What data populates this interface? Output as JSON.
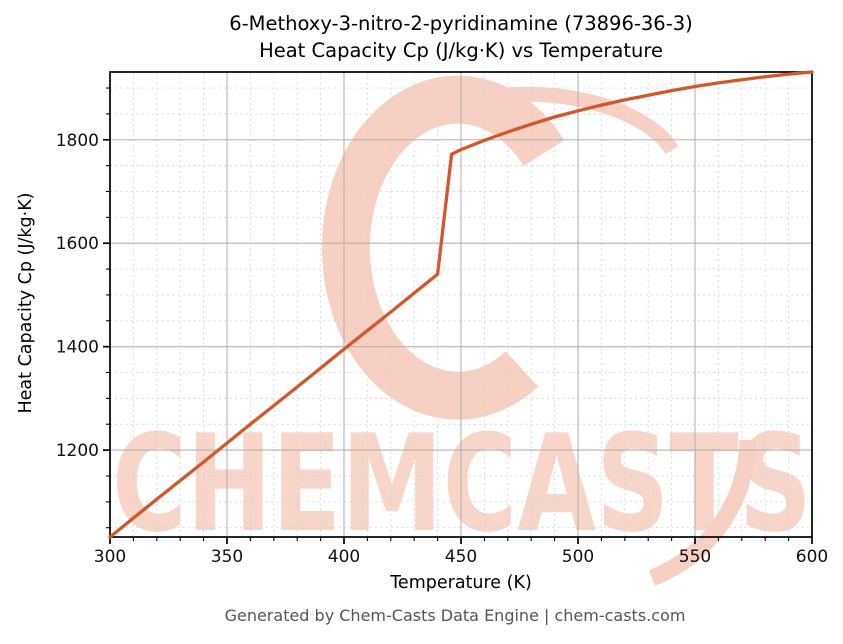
{
  "page": {
    "title_line1": "6-Methoxy-3-nitro-2-pyridinamine (73896-36-3)",
    "title_line2": "Heat Capacity Cp (J/kg·K) vs Temperature",
    "footer": "Generated by Chem-Casts Data Engine | chem-casts.com",
    "watermark_text": "CHEMCASTS"
  },
  "colors": {
    "line": "#d4572b",
    "watermark": "#f8d5c9",
    "watermark_logo": "#f7d0c3",
    "grid_major": "#b3b3b3",
    "grid_minor": "#d4d4d4",
    "frame": "#000000",
    "tick_label": "#111111",
    "footer_text": "#545454"
  },
  "chart_data": {
    "type": "line",
    "title": "6-Methoxy-3-nitro-2-pyridinamine (73896-36-3)\nHeat Capacity Cp (J/kg·K) vs Temperature",
    "xlabel": "Temperature (K)",
    "ylabel": "Heat Capacity Cp (J/kg·K)",
    "xlim": [
      300,
      600
    ],
    "ylim": [
      1032,
      1931
    ],
    "x_ticks": [
      300,
      350,
      400,
      450,
      500,
      550,
      600
    ],
    "y_ticks": [
      1200,
      1400,
      1600,
      1800
    ],
    "x_minor_step": 10,
    "y_minor_step": 50,
    "grid": "major-solid, minor-dashed",
    "legend": "none",
    "series": [
      {
        "name": "Heat Capacity Cp",
        "color": "#d4572b",
        "x": [
          300,
          320,
          340,
          360,
          380,
          400,
          420,
          440,
          446,
          450,
          460,
          470,
          480,
          490,
          500,
          510,
          520,
          530,
          540,
          550,
          560,
          570,
          580,
          590,
          600
        ],
        "y": [
          1032,
          1105,
          1177,
          1250,
          1322,
          1395,
          1467,
          1540,
          1772,
          1781,
          1799,
          1815,
          1830,
          1844,
          1856,
          1867,
          1877,
          1886,
          1895,
          1903,
          1910,
          1916,
          1922,
          1927,
          1931
        ]
      }
    ]
  }
}
